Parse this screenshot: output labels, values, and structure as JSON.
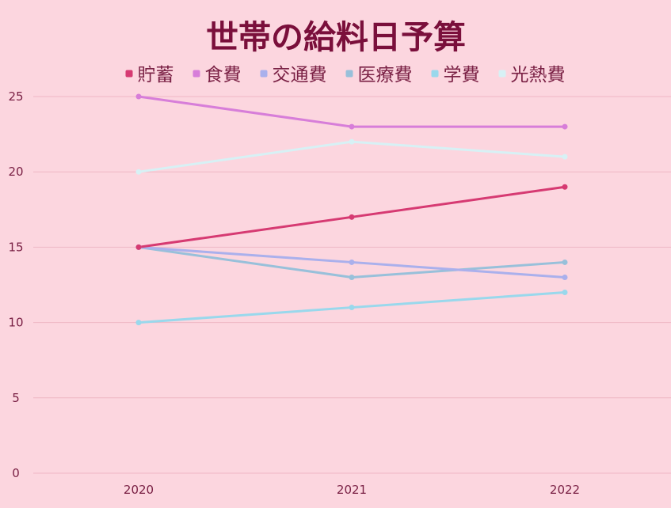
{
  "chart_data": {
    "type": "line",
    "title": "世帯の給料日予算",
    "xlabel": "",
    "ylabel": "",
    "categories": [
      "2020",
      "2021",
      "2022"
    ],
    "ylim": [
      0,
      25
    ],
    "yticks": [
      "0",
      "5",
      "10",
      "15",
      "20",
      "25"
    ],
    "grid": true,
    "legend_position": "top",
    "series": [
      {
        "name": "貯蓄",
        "color": "#d63a72",
        "values": [
          15,
          17,
          19
        ]
      },
      {
        "name": "食費",
        "color": "#d77ed9",
        "values": [
          25,
          23,
          23
        ]
      },
      {
        "name": "交通費",
        "color": "#aab0ec",
        "values": [
          15,
          14,
          13
        ]
      },
      {
        "name": "医療費",
        "color": "#98c0da",
        "values": [
          15,
          13,
          14
        ]
      },
      {
        "name": "学費",
        "color": "#99d8ec",
        "values": [
          10,
          11,
          12
        ]
      },
      {
        "name": "光熱費",
        "color": "#d7f1f5",
        "values": [
          20,
          22,
          21
        ]
      }
    ]
  },
  "colors": {
    "background": "#fcd6df",
    "title": "#7a0f3b",
    "axis_text": "#7a2145",
    "gridline": "#efb7c4"
  }
}
